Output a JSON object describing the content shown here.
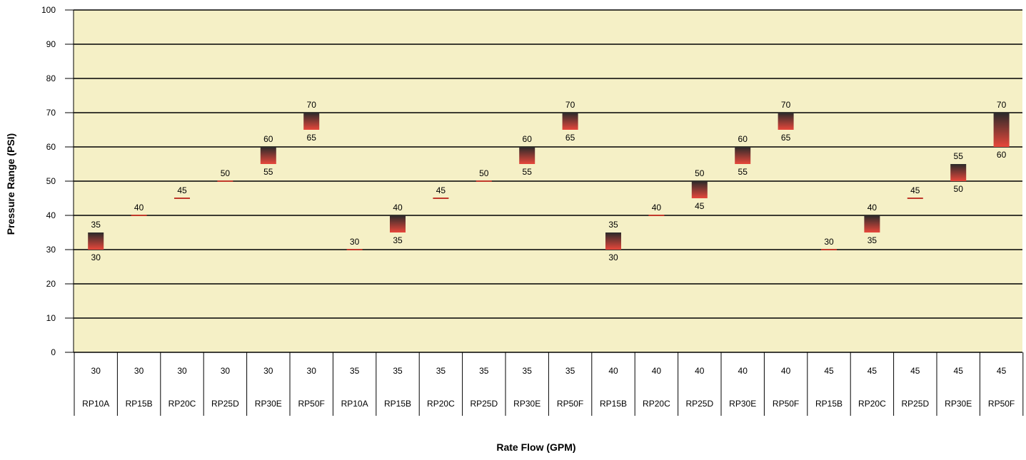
{
  "chart_data": {
    "type": "bar",
    "subtype": "floating-range",
    "title": "",
    "xlabel": "Rate Flow (GPM)",
    "ylabel": "Pressure Range (PSI)",
    "ylim": [
      0,
      100
    ],
    "yticks": [
      0,
      10,
      20,
      30,
      40,
      50,
      60,
      70,
      80,
      90,
      100
    ],
    "grid": true,
    "legend": "none",
    "colors": {
      "plot_bg": "#F5F0C6",
      "bar_top": "#2A2A2A",
      "bar_bottom": "#E8473B",
      "grid": "#000000"
    },
    "categories": [
      {
        "flow": "30",
        "model": "RP10A",
        "low": 30,
        "high": 35
      },
      {
        "flow": "30",
        "model": "RP15B",
        "low": 40,
        "high": 40
      },
      {
        "flow": "30",
        "model": "RP20C",
        "low": 45,
        "high": 45
      },
      {
        "flow": "30",
        "model": "RP25D",
        "low": 50,
        "high": 50
      },
      {
        "flow": "30",
        "model": "RP30E",
        "low": 55,
        "high": 60
      },
      {
        "flow": "30",
        "model": "RP50F",
        "low": 65,
        "high": 70
      },
      {
        "flow": "35",
        "model": "RP10A",
        "low": 30,
        "high": 30
      },
      {
        "flow": "35",
        "model": "RP15B",
        "low": 35,
        "high": 40
      },
      {
        "flow": "35",
        "model": "RP20C",
        "low": 45,
        "high": 45
      },
      {
        "flow": "35",
        "model": "RP25D",
        "low": 50,
        "high": 50
      },
      {
        "flow": "35",
        "model": "RP30E",
        "low": 55,
        "high": 60
      },
      {
        "flow": "35",
        "model": "RP50F",
        "low": 65,
        "high": 70
      },
      {
        "flow": "40",
        "model": "RP15B",
        "low": 30,
        "high": 35
      },
      {
        "flow": "40",
        "model": "RP20C",
        "low": 40,
        "high": 40
      },
      {
        "flow": "40",
        "model": "RP25D",
        "low": 45,
        "high": 50
      },
      {
        "flow": "40",
        "model": "RP30E",
        "low": 55,
        "high": 60
      },
      {
        "flow": "40",
        "model": "RP50F",
        "low": 65,
        "high": 70
      },
      {
        "flow": "45",
        "model": "RP15B",
        "low": 30,
        "high": 30
      },
      {
        "flow": "45",
        "model": "RP20C",
        "low": 35,
        "high": 40
      },
      {
        "flow": "45",
        "model": "RP25D",
        "low": 45,
        "high": 45
      },
      {
        "flow": "45",
        "model": "RP30E",
        "low": 50,
        "high": 55
      },
      {
        "flow": "45",
        "model": "RP50F",
        "low": 60,
        "high": 70
      }
    ]
  }
}
